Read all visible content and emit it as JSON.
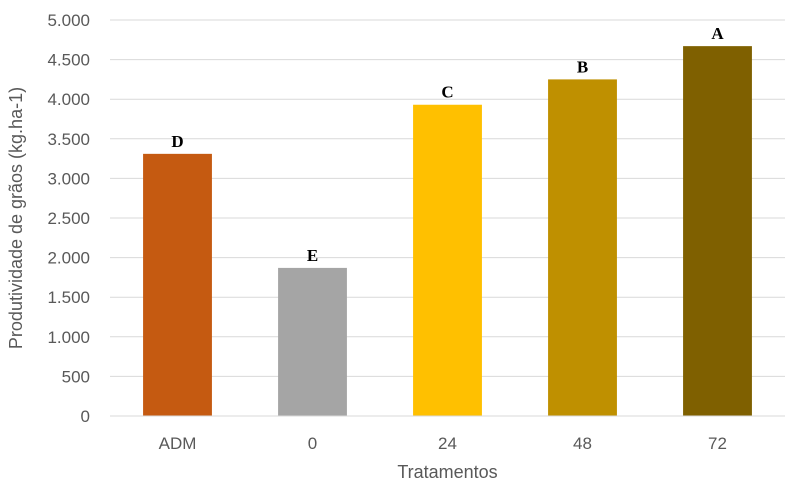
{
  "chart_data": {
    "type": "bar",
    "title": "",
    "xlabel": "Tratamentos",
    "ylabel": "Produtividade de grãos (kg.ha-1)",
    "categories": [
      "ADM",
      "0",
      "24",
      "48",
      "72"
    ],
    "values": [
      3310,
      1870,
      3930,
      4250,
      4670
    ],
    "letters": [
      "D",
      "E",
      "C",
      "B",
      "A"
    ],
    "colors": [
      "#C55A11",
      "#A5A5A5",
      "#FFC000",
      "#BF9000",
      "#7F6000"
    ],
    "ylim": [
      0,
      5000
    ],
    "yticks": [
      0,
      500,
      1000,
      1500,
      2000,
      2500,
      3000,
      3500,
      4000,
      4500,
      5000
    ],
    "ytick_labels": [
      "0",
      "500",
      "1.000",
      "1.500",
      "2.000",
      "2.500",
      "3.000",
      "3.500",
      "4.000",
      "4.500",
      "5.000"
    ],
    "grid": true,
    "legend": "none"
  }
}
